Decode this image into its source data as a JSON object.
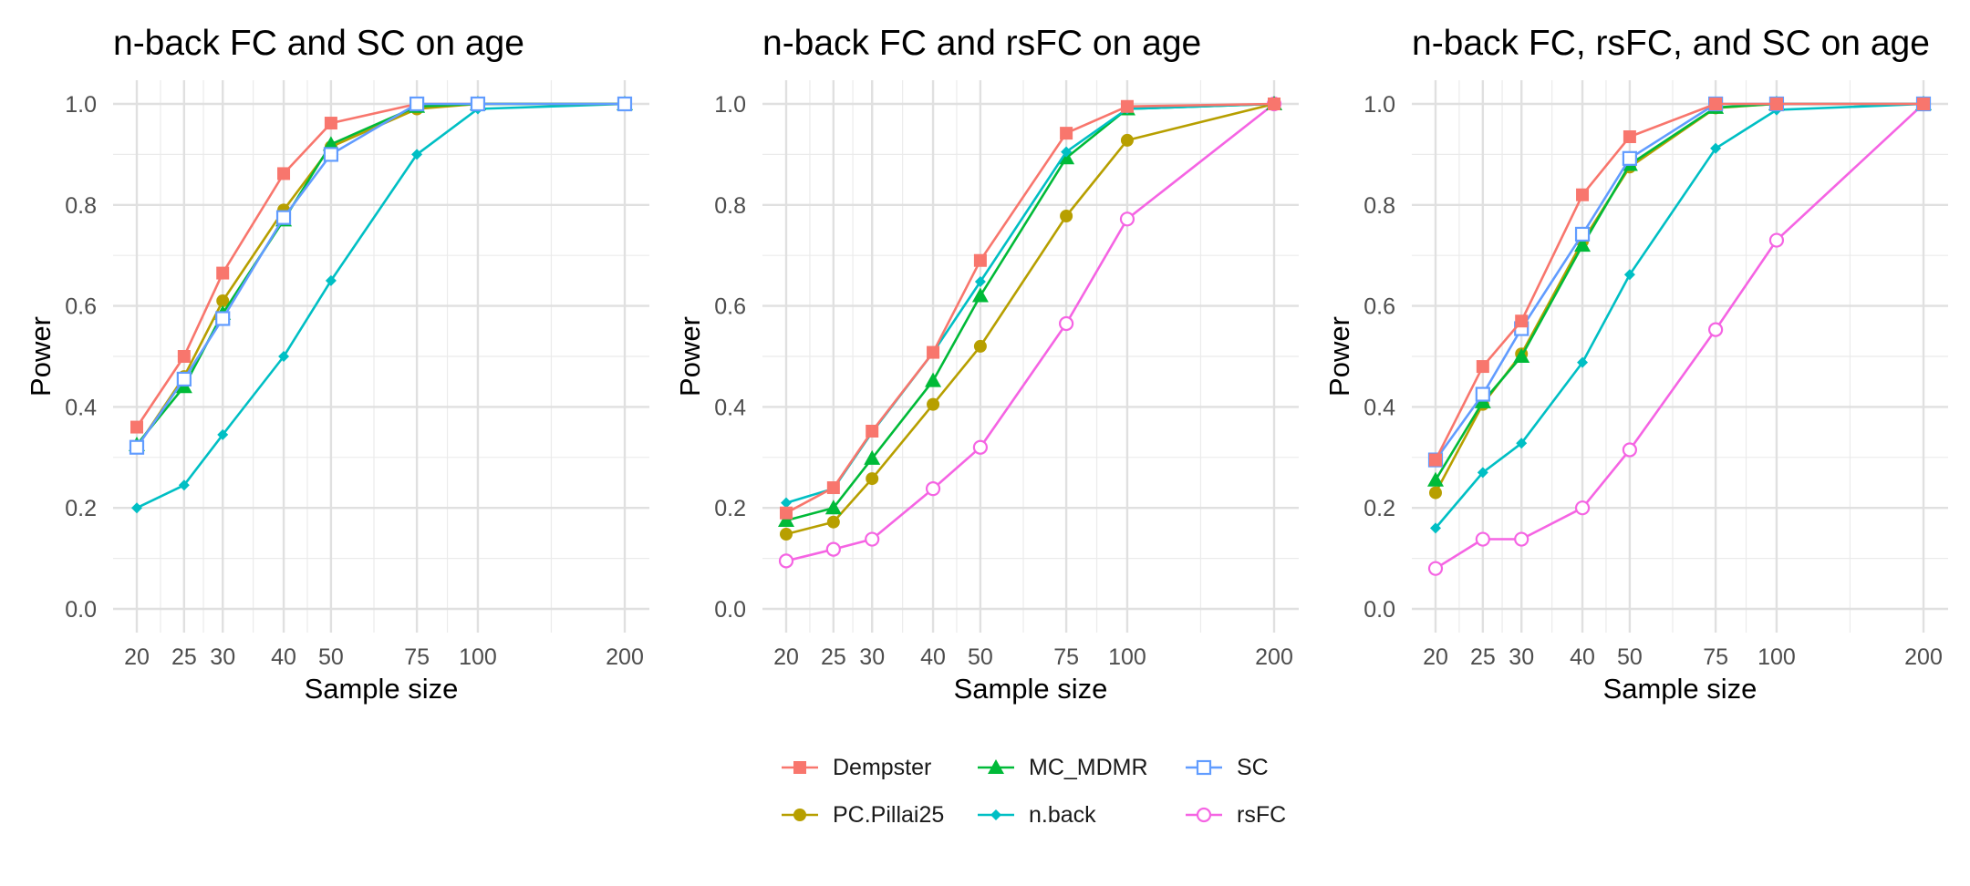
{
  "chart_data": [
    {
      "type": "line",
      "title": "n-back FC and SC on age",
      "xlabel": "Sample size",
      "ylabel": "Power",
      "x_scale": "log",
      "x": [
        20,
        25,
        30,
        40,
        50,
        75,
        100,
        200
      ],
      "x_ticks": [
        "20",
        "25",
        "30",
        "40",
        "50",
        "75",
        "100",
        "200"
      ],
      "y_ticks": [
        "0.0",
        "0.2",
        "0.4",
        "0.6",
        "0.8",
        "1.0"
      ],
      "ylim": [
        0,
        1
      ],
      "grid": true,
      "series": [
        {
          "name": "n.back",
          "values": [
            0.2,
            0.245,
            0.345,
            0.5,
            0.65,
            0.9,
            0.99,
            1.0
          ]
        },
        {
          "name": "Dempster",
          "values": [
            0.36,
            0.5,
            0.665,
            0.862,
            0.962,
            1.0,
            1.0,
            1.0
          ]
        },
        {
          "name": "PC.Pillai25",
          "values": [
            0.32,
            0.46,
            0.61,
            0.79,
            0.915,
            0.99,
            1.0,
            1.0
          ]
        },
        {
          "name": "MC_MDMR",
          "values": [
            0.325,
            0.44,
            0.585,
            0.77,
            0.92,
            0.995,
            1.0,
            1.0
          ]
        },
        {
          "name": "SC",
          "values": [
            0.32,
            0.455,
            0.575,
            0.775,
            0.9,
            1.0,
            1.0,
            1.0
          ]
        }
      ]
    },
    {
      "type": "line",
      "title": "n-back FC and rsFC on age",
      "xlabel": "Sample size",
      "ylabel": "Power",
      "x_scale": "log",
      "x": [
        20,
        25,
        30,
        40,
        50,
        75,
        100,
        200
      ],
      "x_ticks": [
        "20",
        "25",
        "30",
        "40",
        "50",
        "75",
        "100",
        "200"
      ],
      "y_ticks": [
        "0.0",
        "0.2",
        "0.4",
        "0.6",
        "0.8",
        "1.0"
      ],
      "ylim": [
        0,
        1
      ],
      "grid": true,
      "series": [
        {
          "name": "rsFC",
          "values": [
            0.095,
            0.118,
            0.138,
            0.238,
            0.32,
            0.565,
            0.772,
            1.0
          ]
        },
        {
          "name": "PC.Pillai25",
          "values": [
            0.148,
            0.172,
            0.258,
            0.405,
            0.52,
            0.778,
            0.928,
            1.0
          ]
        },
        {
          "name": "MC_MDMR",
          "values": [
            0.175,
            0.2,
            0.298,
            0.452,
            0.62,
            0.893,
            0.99,
            1.0
          ]
        },
        {
          "name": "n.back",
          "values": [
            0.21,
            0.238,
            0.35,
            0.508,
            0.648,
            0.905,
            0.99,
            1.0
          ]
        },
        {
          "name": "Dempster",
          "values": [
            0.19,
            0.24,
            0.352,
            0.508,
            0.69,
            0.942,
            0.995,
            1.0
          ]
        }
      ]
    },
    {
      "type": "line",
      "title": "n-back FC, rsFC, and SC on age",
      "xlabel": "Sample size",
      "ylabel": "Power",
      "x_scale": "log",
      "x": [
        20,
        25,
        30,
        40,
        50,
        75,
        100,
        200
      ],
      "x_ticks": [
        "20",
        "25",
        "30",
        "40",
        "50",
        "75",
        "100",
        "200"
      ],
      "y_ticks": [
        "0.0",
        "0.2",
        "0.4",
        "0.6",
        "0.8",
        "1.0"
      ],
      "ylim": [
        0,
        1
      ],
      "grid": true,
      "series": [
        {
          "name": "rsFC",
          "values": [
            0.08,
            0.138,
            0.138,
            0.2,
            0.315,
            0.553,
            0.73,
            1.0
          ]
        },
        {
          "name": "n.back",
          "values": [
            0.16,
            0.27,
            0.328,
            0.488,
            0.662,
            0.912,
            0.988,
            1.0
          ]
        },
        {
          "name": "PC.Pillai25",
          "values": [
            0.23,
            0.405,
            0.505,
            0.728,
            0.875,
            0.992,
            1.0,
            1.0
          ]
        },
        {
          "name": "MC_MDMR",
          "values": [
            0.255,
            0.41,
            0.5,
            0.72,
            0.88,
            0.993,
            1.0,
            1.0
          ]
        },
        {
          "name": "SC",
          "values": [
            0.295,
            0.425,
            0.555,
            0.742,
            0.892,
            1.0,
            1.0,
            1.0
          ]
        },
        {
          "name": "Dempster",
          "values": [
            0.295,
            0.48,
            0.57,
            0.82,
            0.935,
            1.0,
            1.0,
            1.0
          ]
        }
      ]
    }
  ],
  "legend": {
    "items": [
      {
        "name": "Dempster",
        "color": "#F8766D",
        "shape": "filled-square"
      },
      {
        "name": "MC_MDMR",
        "color": "#00BA38",
        "shape": "filled-triangle"
      },
      {
        "name": "SC",
        "color": "#619CFF",
        "shape": "open-square"
      },
      {
        "name": "PC.Pillai25",
        "color": "#B79F00",
        "shape": "filled-circle"
      },
      {
        "name": "n.back",
        "color": "#00BFC4",
        "shape": "filled-diamond"
      },
      {
        "name": "rsFC",
        "color": "#F564E3",
        "shape": "open-circle"
      }
    ]
  }
}
